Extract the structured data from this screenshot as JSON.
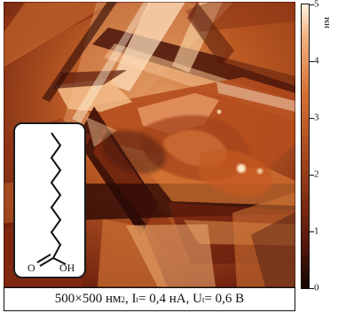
{
  "image": {
    "caption": {
      "size": "500×500 нм",
      "size_sup": "2",
      "current_prefix": ", I",
      "current_sub": "t",
      "current_value": "= 0,4 нА, U",
      "voltage_sub": "t",
      "voltage_value": "= 0,6 В"
    }
  },
  "molecule": {
    "oxygen_label": "O",
    "hydroxyl_label": "OH"
  },
  "height_scale": {
    "unit": "нм",
    "ticks": [
      "0",
      "1",
      "2",
      "3",
      "4",
      "5"
    ],
    "color_low": "#150503",
    "color_high": "#fff0de"
  }
}
